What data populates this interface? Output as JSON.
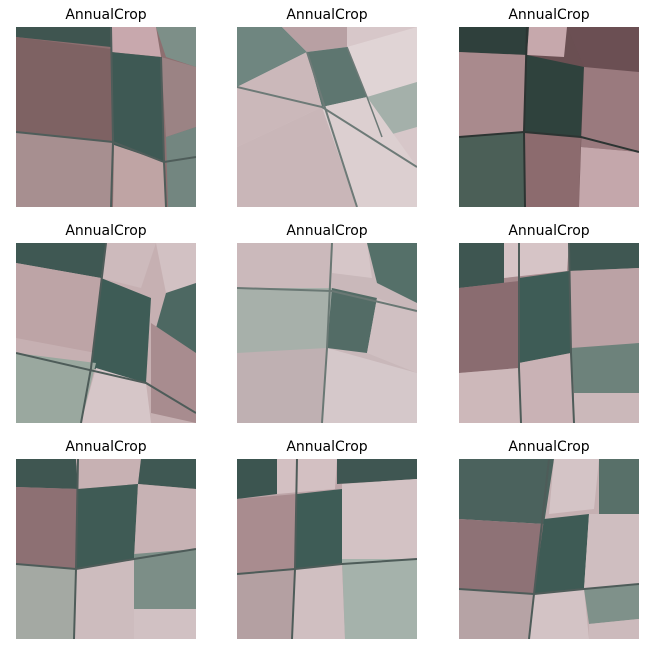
{
  "figure": {
    "tiles": [
      {
        "title": "AnnualCrop"
      },
      {
        "title": "AnnualCrop"
      },
      {
        "title": "AnnualCrop"
      },
      {
        "title": "AnnualCrop"
      },
      {
        "title": "AnnualCrop"
      },
      {
        "title": "AnnualCrop"
      },
      {
        "title": "AnnualCrop"
      },
      {
        "title": "AnnualCrop"
      },
      {
        "title": "AnnualCrop"
      }
    ]
  },
  "colors": {
    "field_pink": "#bfa4a6",
    "field_light": "#d6c4c6",
    "field_brown": "#8c6f70",
    "field_dark_green": "#3f5a55",
    "field_gray_green": "#8a9c94",
    "boundary": "#5c6b68"
  }
}
